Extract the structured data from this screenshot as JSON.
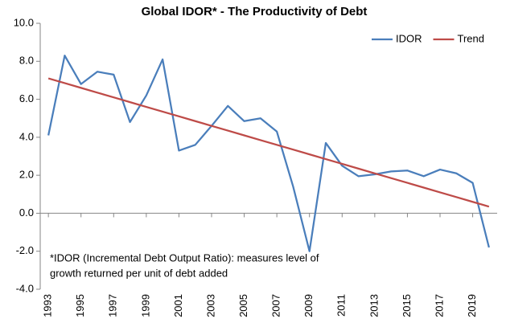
{
  "chart_data": {
    "type": "line",
    "title": "Global IDOR* - The Productivity of Debt",
    "annotation": [
      "*IDOR (Incremental Debt Output Ratio): measures level of",
      "growth returned per unit of debt added"
    ],
    "x": [
      1993,
      1994,
      1995,
      1996,
      1997,
      1998,
      1999,
      2000,
      2001,
      2002,
      2003,
      2004,
      2005,
      2006,
      2007,
      2008,
      2009,
      2010,
      2011,
      2012,
      2013,
      2014,
      2015,
      2016,
      2017,
      2018,
      2019,
      2020
    ],
    "series": [
      {
        "name": "IDOR",
        "color": "#4a7ebb",
        "values": [
          4.1,
          8.3,
          6.8,
          7.45,
          7.3,
          4.8,
          6.2,
          8.1,
          3.3,
          3.6,
          4.6,
          5.65,
          4.85,
          5.0,
          4.3,
          1.4,
          -2.0,
          3.7,
          2.5,
          1.95,
          2.05,
          2.2,
          2.25,
          1.95,
          2.3,
          2.1,
          1.6,
          -1.8
        ]
      },
      {
        "name": "Trend",
        "color": "#be4b48",
        "values": [
          7.1,
          6.85,
          6.6,
          6.35,
          6.1,
          5.85,
          5.6,
          5.35,
          5.1,
          4.85,
          4.6,
          4.35,
          4.1,
          3.85,
          3.6,
          3.35,
          3.1,
          2.85,
          2.6,
          2.35,
          2.1,
          1.85,
          1.6,
          1.35,
          1.1,
          0.85,
          0.6,
          0.35
        ]
      }
    ],
    "xlim": [
      1992.5,
      2020.5
    ],
    "xticks": [
      1993,
      1995,
      1997,
      1999,
      2001,
      2003,
      2005,
      2007,
      2009,
      2011,
      2013,
      2015,
      2017,
      2019
    ],
    "ylim": [
      -4,
      10
    ],
    "yticks": [
      {
        "value": -4,
        "label": "-4.0"
      },
      {
        "value": -2,
        "label": "-2.0"
      },
      {
        "value": 0,
        "label": "0.0"
      },
      {
        "value": 2,
        "label": "2.0"
      },
      {
        "value": 4,
        "label": "4.0"
      },
      {
        "value": 6,
        "label": "6.0"
      },
      {
        "value": 8,
        "label": "8.0"
      },
      {
        "value": 10,
        "label": "10.0"
      }
    ],
    "grid": false,
    "legend": "top-right"
  }
}
